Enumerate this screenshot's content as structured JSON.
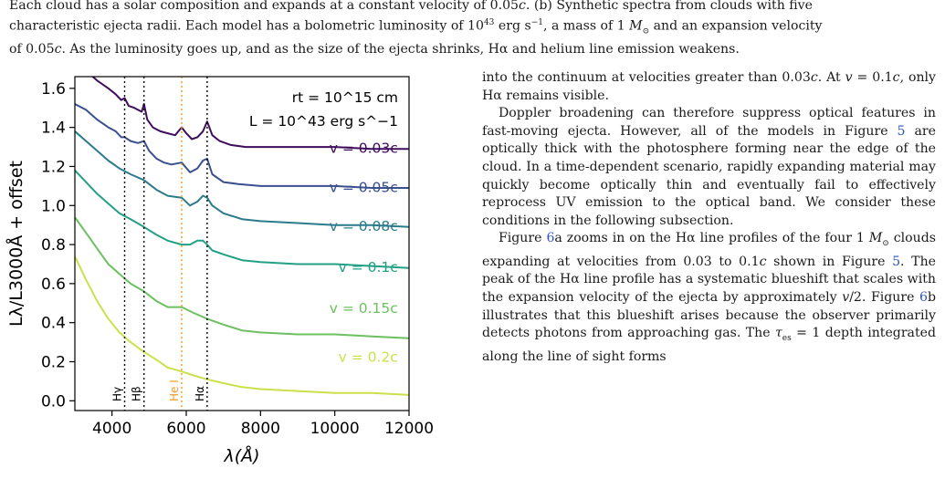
{
  "caption": {
    "line1": "Each cloud has a solar composition and expands at a constant velocity of 0.05c. (b) Synthetic spectra from clouds with five",
    "line2": "characteristic ejecta radii. Each model has a bolometric luminosity of 10^43 erg s^−1, a mass of 1 M⊙ and an expansion velocity",
    "line3": "of 0.05c. As the luminosity goes up, and as the size of the ejecta shrinks, Hα and helium line emission weakens."
  },
  "body_text": {
    "p1": "into the continuum at velocities greater than 0.03c. At v = 0.1c, only Hα remains visible.",
    "p2": "Doppler broadening can therefore suppress optical features in fast-moving ejecta. However, all of the models in Figure 5 are optically thick with the photosphere forming near the edge of the cloud. In a time-dependent scenario, rapidly expanding material may quickly become optically thin and eventually fail to effectively reprocess UV emission to the optical band. We consider these conditions in the following subsection.",
    "p3": "Figure 6a zooms in on the Hα line profiles of the four 1 M⊙ clouds expanding at velocities from 0.03 to 0.1c shown in Figure 5. The peak of the Hα line profile has a systematic blueshift that scales with the expansion velocity of the ejecta by approximately v/2. Figure 6b illustrates that this blueshift arises because the observer primarily detects photons from approaching gas. The τes = 1 depth integrated along the line of sight forms"
  },
  "chart_data": {
    "type": "line",
    "title": "",
    "xlabel": "λ(Å)",
    "ylabel": "Lλ/L3000Å + offset",
    "xlim": [
      3000,
      12000
    ],
    "ylim": [
      -0.05,
      1.66
    ],
    "xticks": [
      4000,
      6000,
      8000,
      10000,
      12000
    ],
    "yticks": [
      0.0,
      0.2,
      0.4,
      0.6,
      0.8,
      1.0,
      1.2,
      1.4,
      1.6
    ],
    "annotations": [
      "rt = 10^15 cm",
      "L = 10^43 erg s^−1"
    ],
    "lines": [
      {
        "label": "Hγ",
        "x": 4340,
        "color": "#000000"
      },
      {
        "label": "Hβ",
        "x": 4861,
        "color": "#000000"
      },
      {
        "label": "He I",
        "x": 5876,
        "color": "#f59a23"
      },
      {
        "label": "Hα",
        "x": 6563,
        "color": "#000000"
      }
    ],
    "series": [
      {
        "name": "v = 0.03c",
        "color": "#3f0d5c",
        "x": [
          3000,
          3300,
          3600,
          3900,
          4100,
          4250,
          4340,
          4450,
          4600,
          4800,
          4861,
          4950,
          5100,
          5300,
          5500,
          5700,
          5876,
          6000,
          6150,
          6300,
          6450,
          6563,
          6700,
          6900,
          7200,
          7600,
          8000,
          9000,
          10000,
          11000,
          12000
        ],
        "y": [
          1.72,
          1.69,
          1.64,
          1.6,
          1.57,
          1.54,
          1.55,
          1.51,
          1.5,
          1.48,
          1.52,
          1.44,
          1.4,
          1.38,
          1.37,
          1.36,
          1.4,
          1.37,
          1.34,
          1.35,
          1.38,
          1.43,
          1.36,
          1.33,
          1.31,
          1.3,
          1.3,
          1.3,
          1.3,
          1.29,
          1.29
        ]
      },
      {
        "name": "v = 0.05c",
        "color": "#3a4f8f",
        "x": [
          3000,
          3300,
          3600,
          3900,
          4100,
          4250,
          4340,
          4500,
          4700,
          4861,
          5000,
          5200,
          5400,
          5600,
          5876,
          6100,
          6300,
          6450,
          6563,
          6700,
          7000,
          7400,
          8000,
          9000,
          10000,
          11000,
          12000
        ],
        "y": [
          1.52,
          1.49,
          1.44,
          1.4,
          1.38,
          1.35,
          1.35,
          1.33,
          1.32,
          1.33,
          1.28,
          1.24,
          1.22,
          1.21,
          1.22,
          1.17,
          1.19,
          1.23,
          1.24,
          1.16,
          1.12,
          1.11,
          1.1,
          1.1,
          1.1,
          1.09,
          1.09
        ]
      },
      {
        "name": "v = 0.08c",
        "color": "#2b7b8c",
        "x": [
          3000,
          3300,
          3600,
          3900,
          4200,
          4500,
          4861,
          5200,
          5500,
          5876,
          6100,
          6300,
          6450,
          6563,
          6700,
          7000,
          7500,
          8000,
          9000,
          10000,
          11000,
          12000
        ],
        "y": [
          1.38,
          1.33,
          1.28,
          1.23,
          1.19,
          1.16,
          1.13,
          1.08,
          1.05,
          1.04,
          1.0,
          1.02,
          1.05,
          1.04,
          1.0,
          0.96,
          0.93,
          0.92,
          0.91,
          0.9,
          0.9,
          0.89
        ]
      },
      {
        "name": "v = 0.1c",
        "color": "#22a085",
        "x": [
          3000,
          3300,
          3600,
          3900,
          4200,
          4500,
          4861,
          5200,
          5500,
          5876,
          6100,
          6300,
          6450,
          6563,
          6700,
          7000,
          7500,
          8000,
          9000,
          10000,
          11000,
          12000
        ],
        "y": [
          1.18,
          1.12,
          1.06,
          1.01,
          0.96,
          0.93,
          0.89,
          0.85,
          0.82,
          0.8,
          0.8,
          0.82,
          0.82,
          0.8,
          0.77,
          0.75,
          0.72,
          0.71,
          0.7,
          0.7,
          0.69,
          0.68
        ]
      },
      {
        "name": "v = 0.15c",
        "color": "#6cc060",
        "x": [
          3000,
          3300,
          3600,
          3900,
          4200,
          4500,
          4861,
          5200,
          5500,
          5876,
          6200,
          6563,
          7000,
          7500,
          8000,
          9000,
          10000,
          11000,
          12000
        ],
        "y": [
          0.94,
          0.86,
          0.78,
          0.7,
          0.65,
          0.6,
          0.56,
          0.51,
          0.48,
          0.48,
          0.45,
          0.42,
          0.39,
          0.36,
          0.35,
          0.34,
          0.34,
          0.33,
          0.32
        ]
      },
      {
        "name": "v = 0.2c",
        "color": "#cbe04a",
        "x": [
          3000,
          3300,
          3600,
          3900,
          4200,
          4500,
          4861,
          5200,
          5500,
          5876,
          6200,
          6563,
          7000,
          7500,
          8000,
          9000,
          10000,
          11000,
          12000
        ],
        "y": [
          0.74,
          0.62,
          0.51,
          0.42,
          0.35,
          0.3,
          0.25,
          0.21,
          0.17,
          0.15,
          0.13,
          0.11,
          0.09,
          0.07,
          0.06,
          0.05,
          0.04,
          0.04,
          0.03
        ]
      }
    ]
  }
}
